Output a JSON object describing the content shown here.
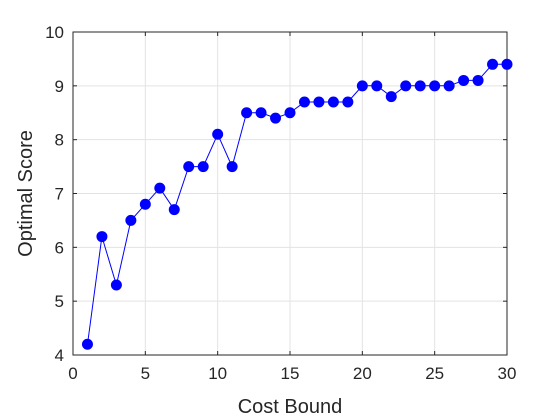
{
  "chart_data": {
    "type": "line",
    "title": "",
    "xlabel": "Cost Bound",
    "ylabel": "Optimal Score",
    "xlim": [
      0,
      30
    ],
    "ylim": [
      4,
      10
    ],
    "xticks": [
      0,
      5,
      10,
      15,
      20,
      25,
      30
    ],
    "yticks": [
      4,
      5,
      6,
      7,
      8,
      9,
      10
    ],
    "grid": true,
    "legend": "none",
    "series": [
      {
        "color": "#0000ff",
        "marker": "circle",
        "x": [
          1,
          2,
          3,
          4,
          5,
          6,
          7,
          8,
          9,
          10,
          11,
          12,
          13,
          14,
          15,
          16,
          17,
          18,
          19,
          20,
          21,
          22,
          23,
          24,
          25,
          26,
          27,
          28,
          29,
          30
        ],
        "y": [
          4.2,
          6.2,
          5.3,
          6.5,
          6.8,
          7.1,
          6.7,
          7.5,
          7.5,
          8.1,
          7.5,
          8.5,
          8.5,
          8.4,
          8.5,
          8.7,
          8.7,
          8.7,
          8.7,
          9.0,
          9.0,
          8.8,
          9.0,
          9.0,
          9.0,
          9.0,
          9.1,
          9.1,
          9.4,
          9.4
        ]
      }
    ]
  }
}
